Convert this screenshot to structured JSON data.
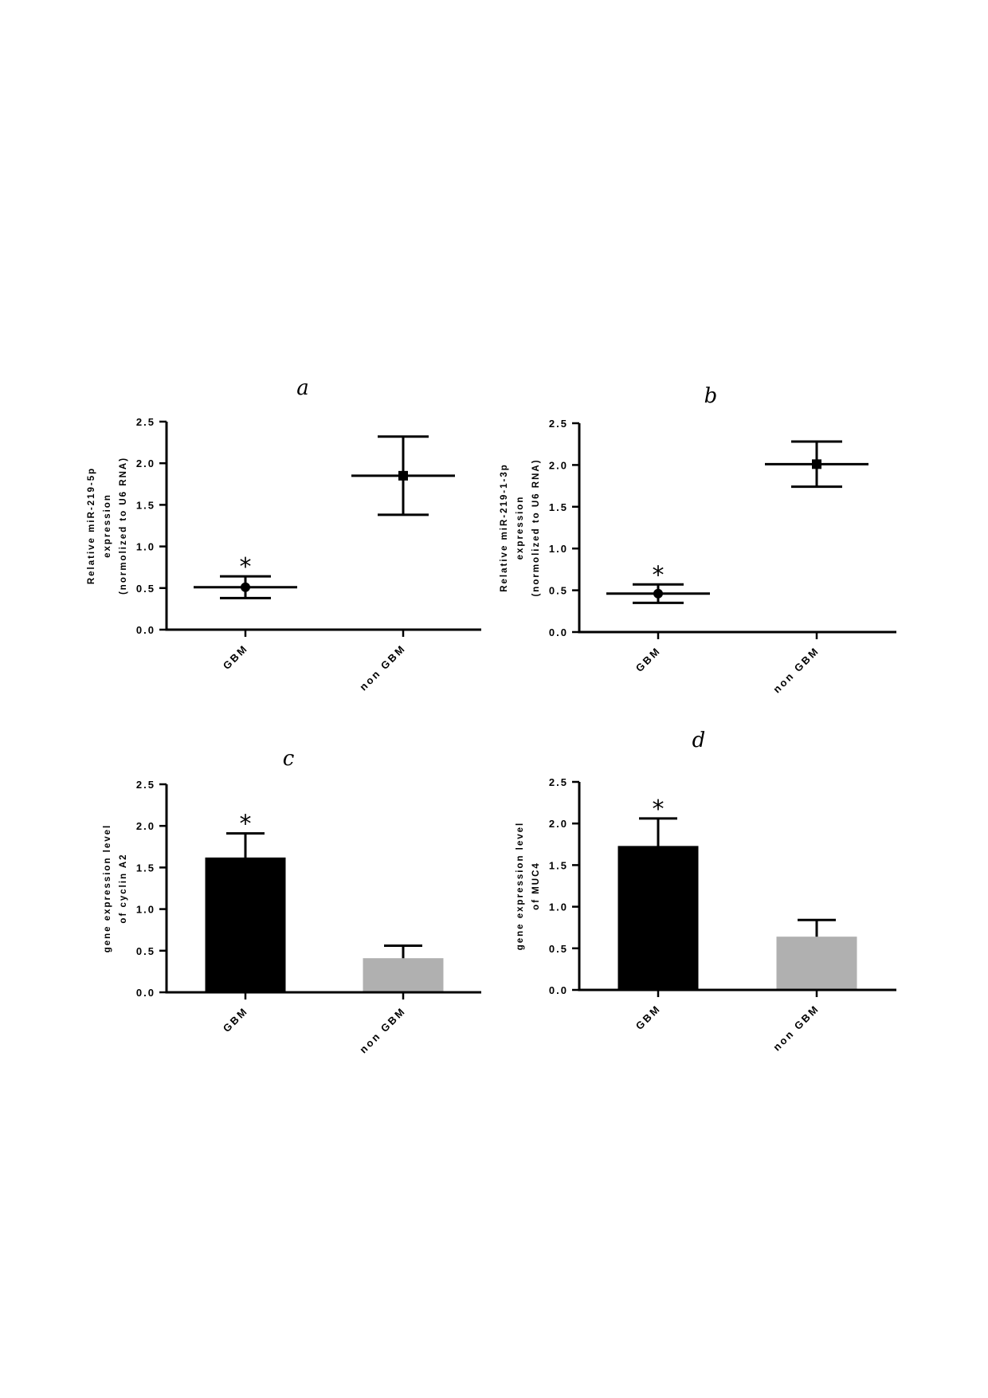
{
  "charts": [
    {
      "id": "a",
      "chart_data": {
        "type": "scatter",
        "panel_label": "a",
        "categories": [
          "GBM",
          "non GBM"
        ],
        "ylabel_lines": [
          "Relative miR-219-5p",
          "expression",
          "(normolized to U6 RNA)"
        ],
        "ylim": [
          0,
          2.5
        ],
        "yticks": [
          "0.0",
          "0.5",
          "1.0",
          "1.5",
          "2.0",
          "2.5"
        ],
        "points": [
          {
            "category": "GBM",
            "mean": 0.51,
            "upper": 0.64,
            "lower": 0.38,
            "marker": "circle",
            "significance": "*"
          },
          {
            "category": "non GBM",
            "mean": 1.85,
            "upper": 2.32,
            "lower": 1.38,
            "marker": "square",
            "significance": ""
          }
        ]
      }
    },
    {
      "id": "b",
      "chart_data": {
        "type": "scatter",
        "panel_label": "b",
        "categories": [
          "GBM",
          "non GBM"
        ],
        "ylabel_lines": [
          "Relative miR-219-1-3p",
          "expression",
          "(normolized to U6 RNA)"
        ],
        "ylim": [
          0,
          2.5
        ],
        "yticks": [
          "0.0",
          "0.5",
          "1.0",
          "1.5",
          "2.0",
          "2.5"
        ],
        "points": [
          {
            "category": "GBM",
            "mean": 0.46,
            "upper": 0.57,
            "lower": 0.35,
            "marker": "circle",
            "significance": "*"
          },
          {
            "category": "non GBM",
            "mean": 2.01,
            "upper": 2.28,
            "lower": 1.74,
            "marker": "square",
            "significance": ""
          }
        ]
      }
    },
    {
      "id": "c",
      "chart_data": {
        "type": "bar",
        "panel_label": "c",
        "categories": [
          "GBM",
          "non GBM"
        ],
        "ylabel_lines": [
          "gene expression level",
          "of cyclin A2"
        ],
        "ylim": [
          0,
          2.5
        ],
        "yticks": [
          "0.0",
          "0.5",
          "1.0",
          "1.5",
          "2.0",
          "2.5"
        ],
        "values": [
          1.62,
          0.41
        ],
        "errors": [
          0.29,
          0.15
        ],
        "colors": [
          "#000000",
          "#b0b0b0"
        ],
        "significance": [
          "*",
          ""
        ]
      }
    },
    {
      "id": "d",
      "chart_data": {
        "type": "bar",
        "panel_label": "d",
        "categories": [
          "GBM",
          "non GBM"
        ],
        "ylabel_lines": [
          "gene expression level",
          "of MUC4"
        ],
        "ylim": [
          0,
          2.5
        ],
        "yticks": [
          "0.0",
          "0.5",
          "1.0",
          "1.5",
          "2.0",
          "2.5"
        ],
        "values": [
          1.73,
          0.64
        ],
        "errors": [
          0.33,
          0.2
        ],
        "colors": [
          "#000000",
          "#b0b0b0"
        ],
        "significance": [
          "*",
          ""
        ]
      }
    }
  ]
}
